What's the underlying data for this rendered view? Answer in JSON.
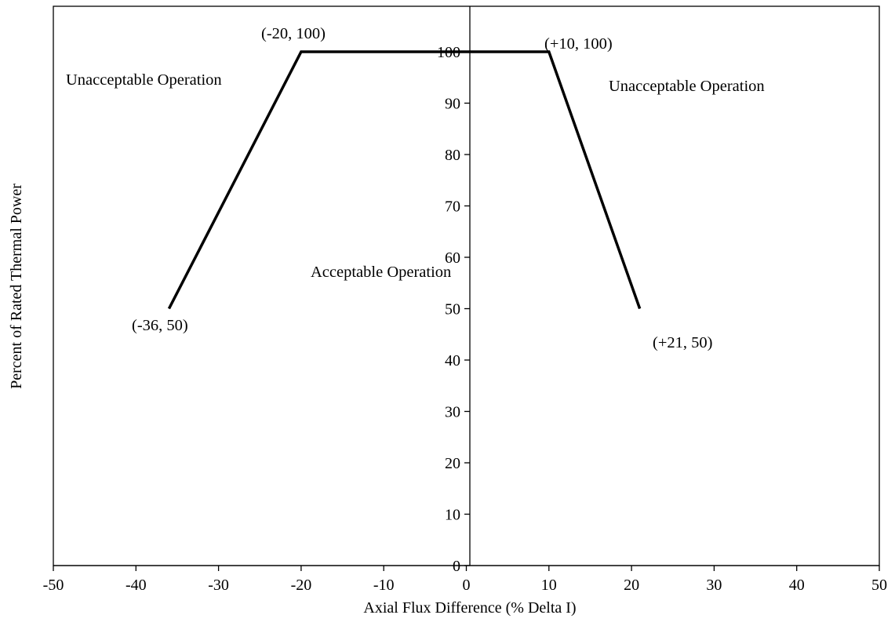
{
  "chart_data": {
    "type": "line",
    "title": "",
    "xlabel": "Axial  Flux  Difference  (%  Delta  I)",
    "ylabel": "Percent  of Rated  Thermal  Power",
    "xlim": [
      -50,
      50
    ],
    "ylim": [
      0,
      100
    ],
    "x_ticks": [
      -50,
      -40,
      -30,
      -20,
      -10,
      0,
      10,
      20,
      30,
      40,
      50
    ],
    "y_ticks": [
      0,
      10,
      20,
      30,
      40,
      50,
      60,
      70,
      80,
      90,
      100
    ],
    "grid": false,
    "series": [
      {
        "x": [
          -36,
          -20,
          10,
          21
        ],
        "y": [
          50,
          100,
          100,
          50
        ],
        "color": "#000000"
      }
    ],
    "point_labels": [
      "(-36, 50)",
      "(-20, 100)",
      "(+10, 100)",
      "(+21, 50)"
    ],
    "region_labels": {
      "left": "Unacceptable Operation",
      "right": "Unacceptable Operation",
      "center": "Acceptable Operation"
    }
  }
}
